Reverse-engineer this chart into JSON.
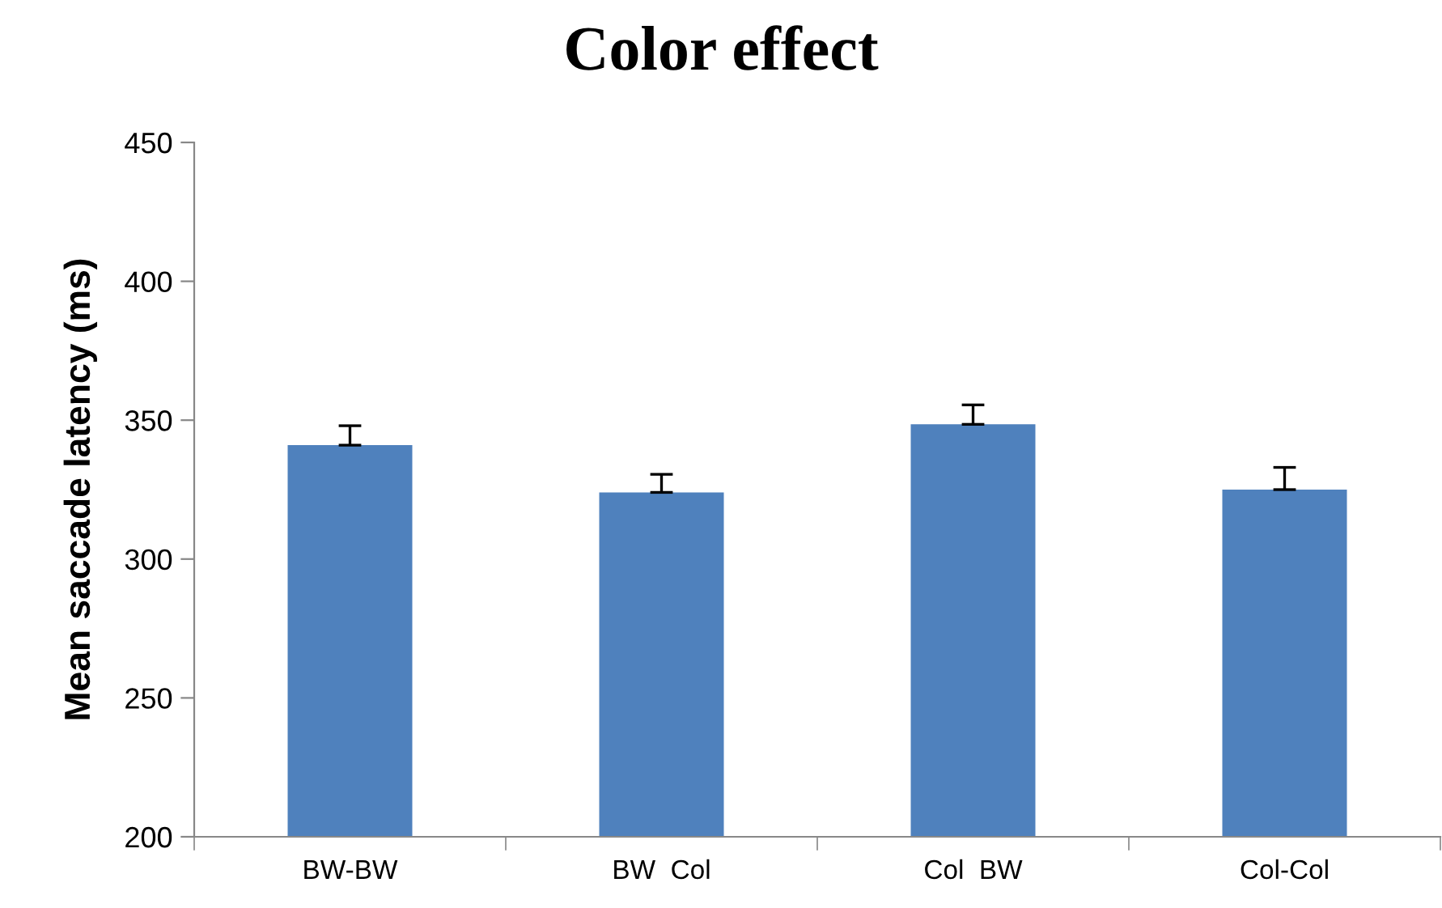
{
  "chart_data": {
    "type": "bar",
    "title": "Color effect",
    "ylabel": "Mean saccade latency (ms)",
    "categories": [
      "BW-BW",
      "BW  Col",
      "Col  BW",
      "Col-Col"
    ],
    "values": [
      341,
      324,
      348.5,
      325
    ],
    "errors": [
      [
        341,
        348
      ],
      [
        324,
        330.5
      ],
      [
        348.5,
        355.5
      ],
      [
        325,
        333
      ]
    ],
    "color": "#4f81bd",
    "ylim": [
      200,
      450
    ],
    "yticks": [
      200,
      250,
      300,
      350,
      400,
      450
    ],
    "grid": false
  }
}
